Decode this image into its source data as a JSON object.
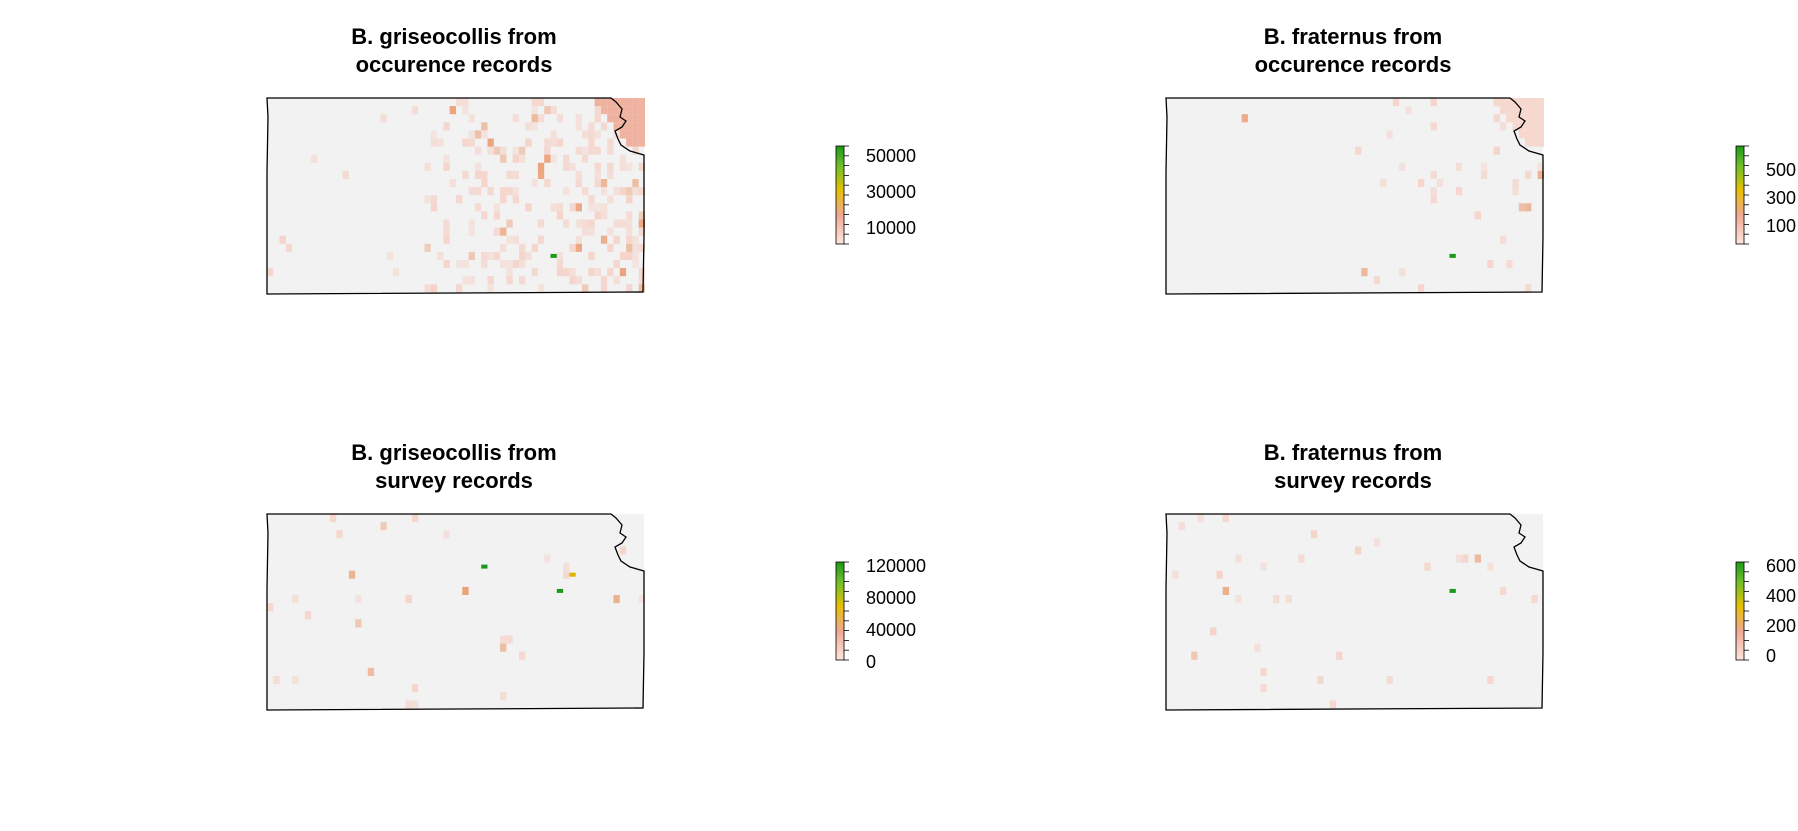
{
  "panels": [
    {
      "title_line1": "B. griseocollis from",
      "title_line2": "occurence records",
      "legend_ticks": [
        "50000",
        "30000",
        "10000"
      ],
      "hotspots": [
        {
          "ci": 45,
          "ri": 19,
          "color": "#1a9a1a"
        }
      ]
    },
    {
      "title_line1": "B. fraternus from",
      "title_line2": "occurence records",
      "legend_ticks": [
        "500",
        "300",
        "100"
      ],
      "hotspots": [
        {
          "ci": 45,
          "ri": 19,
          "color": "#1a9a1a"
        }
      ]
    },
    {
      "title_line1": "B. griseocollis from",
      "title_line2": "survey records",
      "legend_ticks": [
        "120000",
        "80000",
        "40000",
        "0"
      ],
      "hotspots": [
        {
          "ci": 34,
          "ri": 6,
          "color": "#1a9a1a"
        },
        {
          "ci": 48,
          "ri": 7,
          "color": "#e0b400"
        },
        {
          "ci": 46,
          "ri": 9,
          "color": "#1a9a1a"
        }
      ]
    },
    {
      "title_line1": "B. fraternus from",
      "title_line2": "survey records",
      "legend_ticks": [
        "600",
        "400",
        "200",
        "0"
      ],
      "hotspots": [
        {
          "ci": 45,
          "ri": 9,
          "color": "#1a9a1a"
        }
      ]
    }
  ],
  "colors": {
    "background_cell": "#f2f2f2",
    "low": "#f5d3c9",
    "mid": "#eba27a",
    "high_warm": "#e7b100",
    "high": "#1aa51a",
    "border": "#000000"
  }
}
